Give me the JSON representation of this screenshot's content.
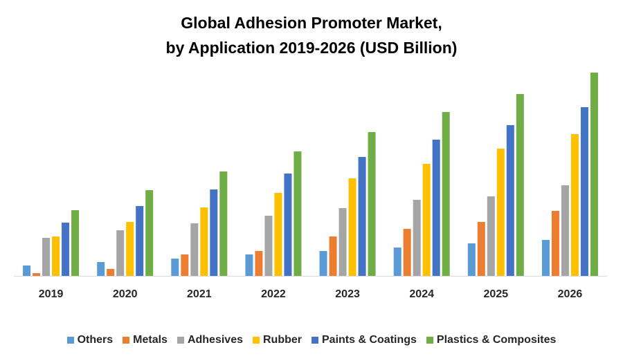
{
  "chart_data": {
    "type": "bar",
    "title_line1": "Global Adhesion Promoter Market,",
    "title_line2": "by Application 2019-2026 (USD Billion)",
    "xlabel": "",
    "ylabel": "",
    "y_axis_shown": false,
    "grid": false,
    "legend_position": "bottom",
    "note": "",
    "categories": [
      "2019",
      "2020",
      "2021",
      "2022",
      "2023",
      "2024",
      "2025",
      "2026"
    ],
    "series": [
      {
        "name": "Others",
        "color": "#5B9BD5",
        "values": [
          15,
          20,
          25,
          31,
          36,
          41,
          47,
          52
        ]
      },
      {
        "name": "Metals",
        "color": "#ED7D31",
        "values": [
          4,
          10,
          31,
          36,
          57,
          68,
          78,
          94
        ]
      },
      {
        "name": "Adhesives",
        "color": "#A5A5A5",
        "values": [
          55,
          66,
          76,
          87,
          98,
          110,
          115,
          131
        ]
      },
      {
        "name": "Rubber",
        "color": "#FFC000",
        "values": [
          57,
          78,
          99,
          120,
          141,
          162,
          184,
          205
        ]
      },
      {
        "name": "Paints & Coatings",
        "color": "#4472C4",
        "values": [
          77,
          101,
          125,
          148,
          172,
          197,
          218,
          244
        ]
      },
      {
        "name": "Plastics & Composites",
        "color": "#70AD47",
        "values": [
          95,
          124,
          151,
          180,
          208,
          237,
          263,
          294
        ]
      }
    ]
  }
}
